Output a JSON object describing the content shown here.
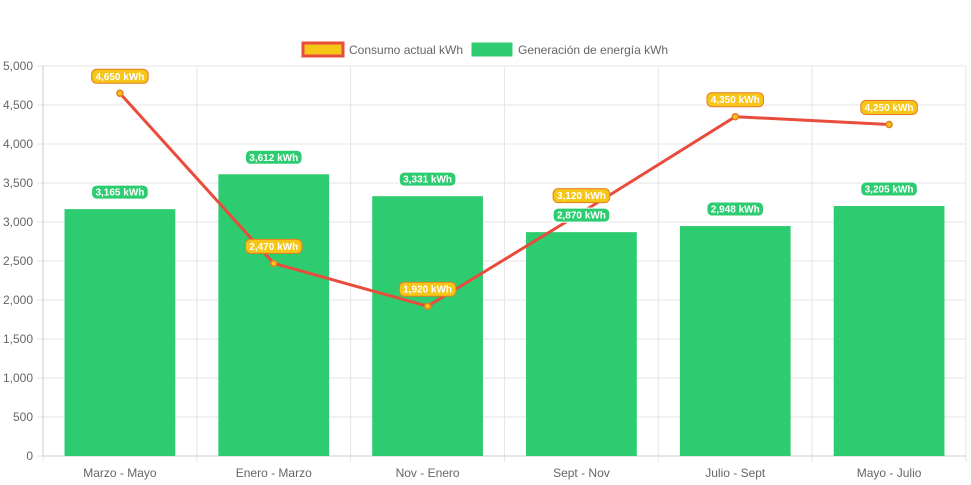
{
  "chart_data": {
    "type": "bar",
    "categories": [
      "Marzo - Mayo",
      "Enero - Marzo",
      "Nov - Enero",
      "Sept - Nov",
      "Julio - Sept",
      "Mayo - Julio"
    ],
    "ylim": [
      0,
      5000
    ],
    "y_ticks": [
      "0",
      "500",
      "1,000",
      "1,500",
      "2,000",
      "2,500",
      "3,000",
      "3,500",
      "4,000",
      "4,500",
      "5,000"
    ],
    "grid": true,
    "legend_position": "top",
    "series": [
      {
        "name": "Consumo actual kWh",
        "type": "line",
        "values": [
          4650,
          2470,
          1920,
          3120,
          4350,
          4250
        ],
        "labels": [
          "4,650 kWh",
          "2,470 kWh",
          "1,920 kWh",
          "3,120 kWh",
          "4,350 kWh",
          "4,250 kWh"
        ],
        "color": "#e74c3c",
        "label_fill": "#f5c518",
        "label_border": "#e67e22"
      },
      {
        "name": "Generación de energía kWh",
        "type": "bar",
        "values": [
          3165,
          3612,
          3331,
          2870,
          2948,
          3205
        ],
        "labels": [
          "3,165 kWh",
          "3,612 kWh",
          "3,331 kWh",
          "2,870 kWh",
          "2,948 kWh",
          "3,205 kWh"
        ],
        "color": "#2ecc71"
      }
    ]
  }
}
